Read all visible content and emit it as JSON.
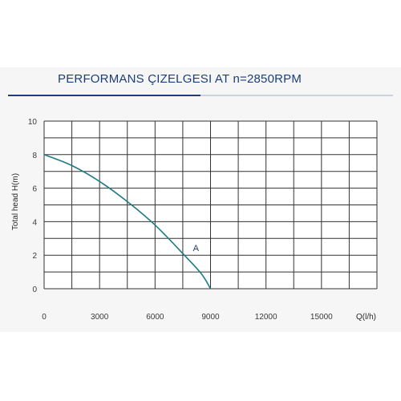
{
  "title": "PERFORMANS ÇIZELGESI  AT n=2850RPM",
  "colors": {
    "title": "#1b3e7a",
    "rule_dark": "#1b3e7a",
    "rule_light": "#c9d3df",
    "curve": "#1e7b84",
    "grid": "#333333",
    "plot_bg": "#ffffff",
    "panel_bg": "#f6f6f6"
  },
  "chart_data": {
    "type": "line",
    "title": "PERFORMANS ÇIZELGESI  AT n=2850RPM",
    "xlabel": "Q(l/h)",
    "ylabel": "Total head  H(m)",
    "xlim": [
      0,
      18000
    ],
    "ylim": [
      0,
      10
    ],
    "xgrid_step": 1500,
    "ygrid_step": 1,
    "xticks": [
      0,
      3000,
      6000,
      9000,
      12000,
      15000
    ],
    "yticks": [
      0,
      2,
      4,
      6,
      8,
      10
    ],
    "grid": true,
    "series": [
      {
        "name": "A",
        "x": [
          0,
          1500,
          3000,
          4500,
          6000,
          7500,
          8500,
          9000
        ],
        "y": [
          8.0,
          7.35,
          6.4,
          5.2,
          3.8,
          2.1,
          0.9,
          0.0
        ]
      }
    ],
    "annotations": [
      {
        "text": "A",
        "x": 8050,
        "y": 2.25
      }
    ]
  }
}
